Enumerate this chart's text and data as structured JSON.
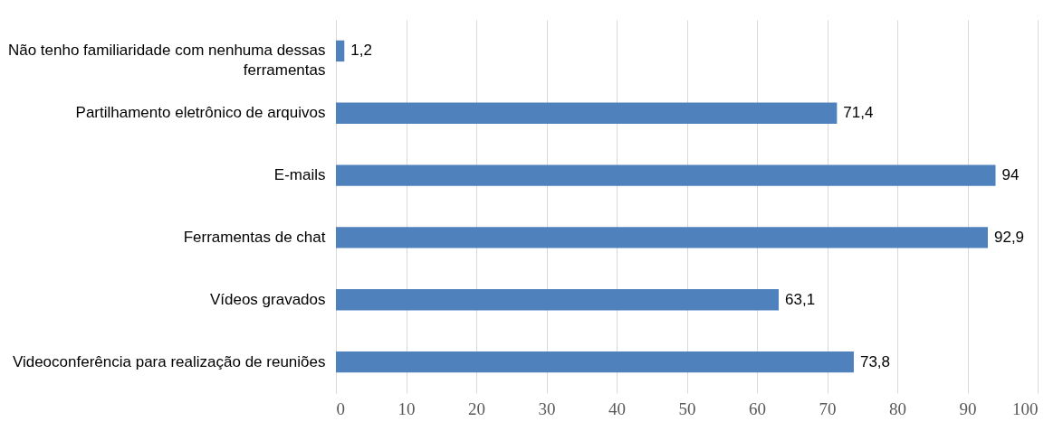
{
  "chart_data": {
    "type": "bar",
    "orientation": "horizontal",
    "categories": [
      "Não tenho familiaridade com nenhuma dessas ferramentas",
      "Partilhamento eletrônico de arquivos",
      "E-mails",
      "Ferramentas de chat",
      "Vídeos gravados",
      "Videoconferência para realização de reuniões"
    ],
    "values": [
      1.2,
      71.4,
      94,
      92.9,
      63.1,
      73.8
    ],
    "value_labels": [
      "1,2",
      "71,4",
      "94",
      "92,9",
      "63,1",
      "73,8"
    ],
    "color": "#4f81bd",
    "xlim": [
      0,
      100
    ],
    "xticks": [
      0,
      10,
      20,
      30,
      40,
      50,
      60,
      70,
      80,
      90,
      100
    ],
    "grid": "x"
  }
}
